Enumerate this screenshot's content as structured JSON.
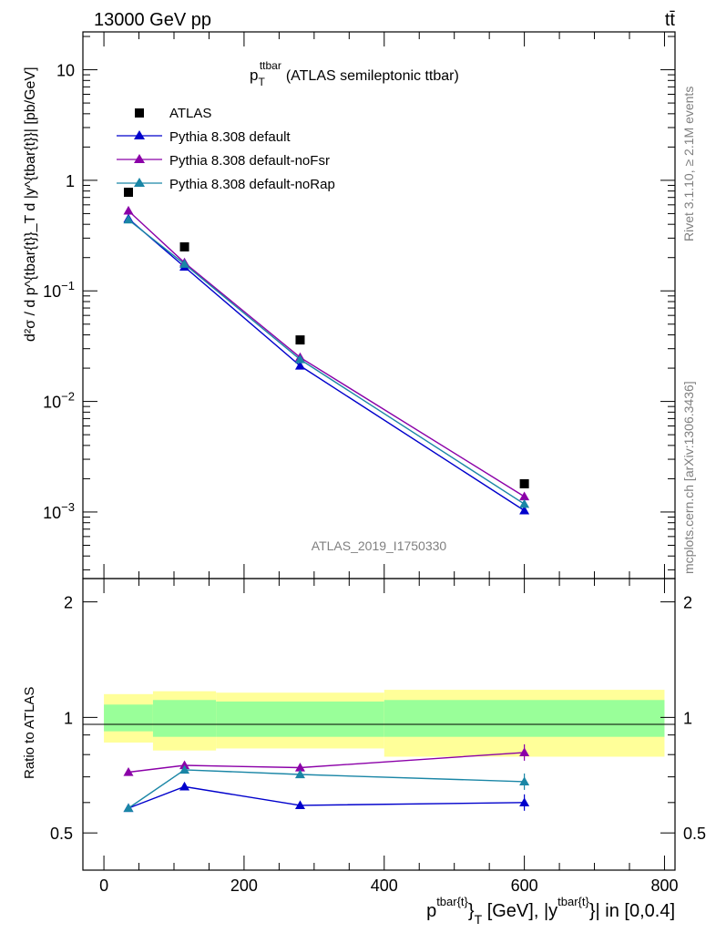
{
  "header": {
    "energy_label": "13000 GeV pp",
    "process_label": "tt̄"
  },
  "side_labels": {
    "rivet": "Rivet 3.1.10, ≥ 2.1M events",
    "mcplots": "mcplots.cern.ch [arXiv:1306.3436]"
  },
  "plot": {
    "title_main": "p",
    "title_sub": "T",
    "title_sup": "ttbar",
    "title_rest": "(ATLAS semileptonic ttbar)",
    "watermark": "ATLAS_2019_I1750330"
  },
  "legend": {
    "placement": "top-left",
    "entries": [
      "ATLAS",
      "Pythia 8.308 default",
      "Pythia 8.308 default-noFsr",
      "Pythia 8.308 default-noRap"
    ]
  },
  "colors": {
    "data": "#000000",
    "default": "#0000cc",
    "noFsr": "#8b00a8",
    "noRap": "#1a86a6",
    "band_inner": "#99ff99",
    "band_outer": "#ffff99"
  },
  "axes": {
    "main_ylabel": "d²σ / d p^{tbar{t}}_T d |y^{tbar{t}}| [pb/GeV]",
    "main_ytick_labels": [
      "10",
      "1",
      "10",
      "10",
      "10"
    ],
    "main_ytick_exps": [
      "",
      "",
      "−1",
      "−2",
      "−3"
    ],
    "ratio_ylabel": "Ratio to ATLAS",
    "ratio_ytick_labels": [
      "2",
      "1",
      "0.5"
    ],
    "xtick_labels": [
      "0",
      "200",
      "400",
      "600",
      "800"
    ],
    "xlabel_a": "p",
    "xlabel_sup1": "tbar{t}",
    "xlabel_b": "}",
    "xlabel_sub": "T",
    "xlabel_c": " [GeV], |y",
    "xlabel_sup2": "tbar{t}",
    "xlabel_d": "}| in [0,0.4]"
  },
  "chart_data": [
    {
      "type": "scatter",
      "x_bins": [
        [
          0,
          70
        ],
        [
          70,
          160
        ],
        [
          160,
          400
        ],
        [
          400,
          800
        ]
      ],
      "x": [
        35,
        115,
        280,
        600
      ],
      "xlim": [
        -30,
        815
      ],
      "ylim": [
        0.00025,
        22
      ],
      "yscale": "log",
      "series": [
        {
          "name": "ATLAS",
          "key": "data",
          "values": [
            0.78,
            0.25,
            0.036,
            0.0018
          ]
        },
        {
          "name": "Pythia 8.308 default",
          "key": "default",
          "values": [
            0.45,
            0.165,
            0.021,
            0.00103
          ]
        },
        {
          "name": "Pythia 8.308 default-noFsr",
          "key": "noFsr",
          "values": [
            0.53,
            0.18,
            0.025,
            0.00138
          ]
        },
        {
          "name": "Pythia 8.308 default-noRap",
          "key": "noRap",
          "values": [
            0.44,
            0.175,
            0.024,
            0.00118
          ]
        }
      ]
    },
    {
      "type": "line",
      "x": [
        35,
        115,
        280,
        600
      ],
      "xlim": [
        -30,
        815
      ],
      "ylim": [
        0.4,
        2.3
      ],
      "yscale": "log",
      "reference": 1.0,
      "band_inner": [
        [
          0.92,
          1.08
        ],
        [
          0.89,
          1.11
        ],
        [
          0.89,
          1.1
        ],
        [
          0.89,
          1.11
        ]
      ],
      "band_outer": [
        [
          0.86,
          1.15
        ],
        [
          0.82,
          1.17
        ],
        [
          0.83,
          1.16
        ],
        [
          0.79,
          1.18
        ]
      ],
      "series": [
        {
          "name": "Pythia 8.308 default",
          "key": "default",
          "values": [
            0.58,
            0.66,
            0.59,
            0.6
          ]
        },
        {
          "name": "Pythia 8.308 default-noFsr",
          "key": "noFsr",
          "values": [
            0.72,
            0.75,
            0.74,
            0.81
          ]
        },
        {
          "name": "Pythia 8.308 default-noRap",
          "key": "noRap",
          "values": [
            0.58,
            0.73,
            0.71,
            0.68
          ]
        }
      ]
    }
  ]
}
